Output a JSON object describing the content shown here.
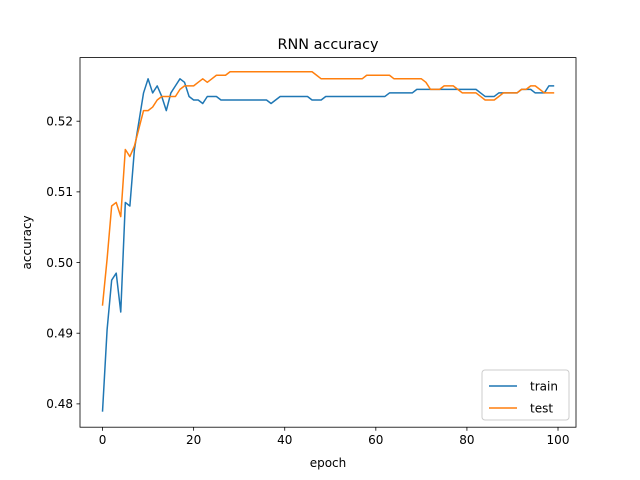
{
  "chart_data": {
    "type": "line",
    "title": "RNN accuracy",
    "xlabel": "epoch",
    "ylabel": "accuracy",
    "xlim": [
      -4.95,
      103.95
    ],
    "ylim": [
      0.4767,
      0.529
    ],
    "xticks": [
      0,
      20,
      40,
      60,
      80,
      100
    ],
    "xtick_labels": [
      "0",
      "20",
      "40",
      "60",
      "80",
      "100"
    ],
    "yticks": [
      0.48,
      0.49,
      0.5,
      0.51,
      0.52
    ],
    "ytick_labels": [
      "0.48",
      "0.49",
      "0.50",
      "0.51",
      "0.52"
    ],
    "grid": false,
    "legend_position": "lower right",
    "series": [
      {
        "name": "train",
        "color": "#1f77b4",
        "values": [
          0.479,
          0.4905,
          0.4975,
          0.4985,
          0.493,
          0.5085,
          0.508,
          0.516,
          0.52,
          0.524,
          0.526,
          0.524,
          0.525,
          0.5235,
          0.5215,
          0.524,
          0.525,
          0.526,
          0.5255,
          0.5235,
          0.523,
          0.523,
          0.5225,
          0.5235,
          0.5235,
          0.5235,
          0.523,
          0.523,
          0.523,
          0.523,
          0.523,
          0.523,
          0.523,
          0.523,
          0.523,
          0.523,
          0.523,
          0.5225,
          0.523,
          0.5235,
          0.5235,
          0.5235,
          0.5235,
          0.5235,
          0.5235,
          0.5235,
          0.523,
          0.523,
          0.523,
          0.5235,
          0.5235,
          0.5235,
          0.5235,
          0.5235,
          0.5235,
          0.5235,
          0.5235,
          0.5235,
          0.5235,
          0.5235,
          0.5235,
          0.5235,
          0.5235,
          0.524,
          0.524,
          0.524,
          0.524,
          0.524,
          0.524,
          0.5245,
          0.5245,
          0.5245,
          0.5245,
          0.5245,
          0.5245,
          0.5245,
          0.5245,
          0.5245,
          0.5245,
          0.5245,
          0.5245,
          0.5245,
          0.5245,
          0.524,
          0.5235,
          0.5235,
          0.5235,
          0.524,
          0.524,
          0.524,
          0.524,
          0.524,
          0.5245,
          0.5245,
          0.5245,
          0.524,
          0.524,
          0.524,
          0.525,
          0.525
        ]
      },
      {
        "name": "test",
        "color": "#ff7f0e",
        "values": [
          0.494,
          0.5005,
          0.508,
          0.5085,
          0.5065,
          0.516,
          0.515,
          0.5165,
          0.519,
          0.5215,
          0.5215,
          0.522,
          0.523,
          0.5235,
          0.5235,
          0.5235,
          0.5235,
          0.5245,
          0.525,
          0.525,
          0.525,
          0.5255,
          0.526,
          0.5255,
          0.526,
          0.5265,
          0.5265,
          0.5265,
          0.527,
          0.527,
          0.527,
          0.527,
          0.527,
          0.527,
          0.527,
          0.527,
          0.527,
          0.527,
          0.527,
          0.527,
          0.527,
          0.527,
          0.527,
          0.527,
          0.527,
          0.527,
          0.527,
          0.5265,
          0.526,
          0.526,
          0.526,
          0.526,
          0.526,
          0.526,
          0.526,
          0.526,
          0.526,
          0.526,
          0.5265,
          0.5265,
          0.5265,
          0.5265,
          0.5265,
          0.5265,
          0.526,
          0.526,
          0.526,
          0.526,
          0.526,
          0.526,
          0.526,
          0.5255,
          0.5245,
          0.5245,
          0.5245,
          0.525,
          0.525,
          0.525,
          0.5245,
          0.524,
          0.524,
          0.524,
          0.524,
          0.5235,
          0.523,
          0.523,
          0.523,
          0.5235,
          0.524,
          0.524,
          0.524,
          0.524,
          0.5245,
          0.5245,
          0.525,
          0.525,
          0.5245,
          0.524,
          0.524,
          0.524
        ]
      }
    ]
  }
}
